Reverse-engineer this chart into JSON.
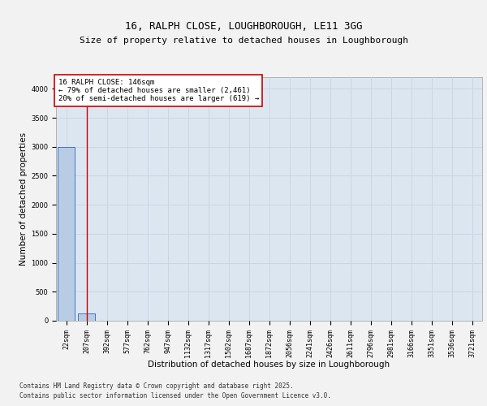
{
  "title1": "16, RALPH CLOSE, LOUGHBOROUGH, LE11 3GG",
  "title2": "Size of property relative to detached houses in Loughborough",
  "xlabel": "Distribution of detached houses by size in Loughborough",
  "ylabel": "Number of detached properties",
  "footer1": "Contains HM Land Registry data © Crown copyright and database right 2025.",
  "footer2": "Contains public sector information licensed under the Open Government Licence v3.0.",
  "categories": [
    "22sqm",
    "207sqm",
    "392sqm",
    "577sqm",
    "762sqm",
    "947sqm",
    "1132sqm",
    "1317sqm",
    "1502sqm",
    "1687sqm",
    "1872sqm",
    "2056sqm",
    "2241sqm",
    "2426sqm",
    "2611sqm",
    "2796sqm",
    "2981sqm",
    "3166sqm",
    "3351sqm",
    "3536sqm",
    "3721sqm"
  ],
  "values": [
    3000,
    120,
    0,
    0,
    0,
    0,
    0,
    0,
    0,
    0,
    0,
    0,
    0,
    0,
    0,
    0,
    0,
    0,
    0,
    0,
    0
  ],
  "bar_color": "#b8cce4",
  "bar_edge_color": "#4472c4",
  "red_line_index": 1,
  "annotation_text": "16 RALPH CLOSE: 146sqm\n← 79% of detached houses are smaller (2,461)\n20% of semi-detached houses are larger (619) →",
  "annotation_box_color": "#ffffff",
  "annotation_box_edge_color": "#cc0000",
  "ylim": [
    0,
    4200
  ],
  "yticks": [
    0,
    500,
    1000,
    1500,
    2000,
    2500,
    3000,
    3500,
    4000
  ],
  "grid_color": "#c8d4e3",
  "plot_bg_color": "#dce6f1",
  "fig_bg_color": "#f2f2f2",
  "title_fontsize": 9,
  "subtitle_fontsize": 8,
  "tick_fontsize": 6,
  "ylabel_fontsize": 7.5,
  "xlabel_fontsize": 7.5,
  "footer_fontsize": 5.5,
  "annotation_fontsize": 6.5
}
